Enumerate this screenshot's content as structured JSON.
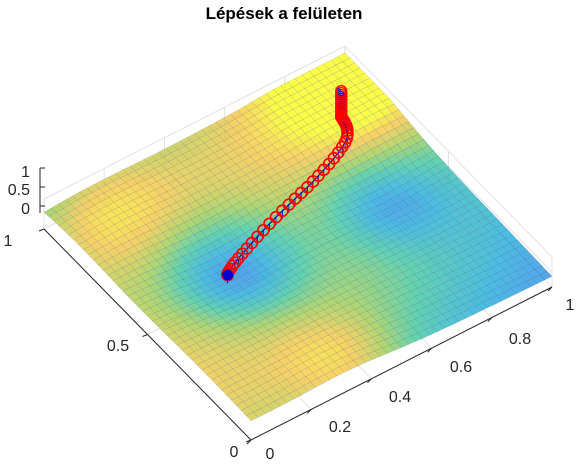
{
  "chart_data": {
    "type": "surface",
    "title": "Lépések a felületen",
    "xlabel": "",
    "ylabel": "",
    "zlabel": "",
    "xlim": [
      0,
      1
    ],
    "ylim": [
      0,
      1
    ],
    "zlim": [
      0,
      1
    ],
    "x_ticks": [
      "0",
      "0.2",
      "0.4",
      "0.6",
      "0.8",
      "1"
    ],
    "y_ticks": [
      "0",
      "0.5",
      "1"
    ],
    "z_ticks": [
      "0",
      "0.5",
      "1"
    ],
    "grid": true,
    "colormap": [
      "#3e26a8",
      "#2f6ef0",
      "#1aa9d8",
      "#3ac598",
      "#9dca4a",
      "#f4c43c",
      "#f9fb15"
    ],
    "mesh_color": "#1f3a8a",
    "surface_opacity": 0.78,
    "path": {
      "marker_color": "#ff0000",
      "line_color": "#0000cc",
      "start": [
        0.85,
        0.8
      ],
      "end": [
        0.28,
        0.52
      ],
      "points": [
        [
          0.85,
          0.8
        ],
        [
          0.849,
          0.796
        ],
        [
          0.848,
          0.792
        ],
        [
          0.847,
          0.787
        ],
        [
          0.846,
          0.782
        ],
        [
          0.845,
          0.776
        ],
        [
          0.843,
          0.77
        ],
        [
          0.841,
          0.763
        ],
        [
          0.838,
          0.755
        ],
        [
          0.834,
          0.747
        ],
        [
          0.828,
          0.738
        ],
        [
          0.82,
          0.729
        ],
        [
          0.808,
          0.72
        ],
        [
          0.792,
          0.711
        ],
        [
          0.773,
          0.702
        ],
        [
          0.752,
          0.693
        ],
        [
          0.73,
          0.684
        ],
        [
          0.706,
          0.675
        ],
        [
          0.682,
          0.666
        ],
        [
          0.658,
          0.657
        ],
        [
          0.633,
          0.648
        ],
        [
          0.607,
          0.64
        ],
        [
          0.581,
          0.632
        ],
        [
          0.555,
          0.624
        ],
        [
          0.528,
          0.616
        ],
        [
          0.501,
          0.608
        ],
        [
          0.474,
          0.6
        ],
        [
          0.448,
          0.592
        ],
        [
          0.423,
          0.584
        ],
        [
          0.399,
          0.576
        ],
        [
          0.377,
          0.568
        ],
        [
          0.357,
          0.561
        ],
        [
          0.339,
          0.554
        ],
        [
          0.323,
          0.547
        ],
        [
          0.31,
          0.541
        ],
        [
          0.299,
          0.535
        ],
        [
          0.291,
          0.53
        ],
        [
          0.285,
          0.526
        ],
        [
          0.281,
          0.523
        ],
        [
          0.28,
          0.52
        ]
      ]
    }
  }
}
